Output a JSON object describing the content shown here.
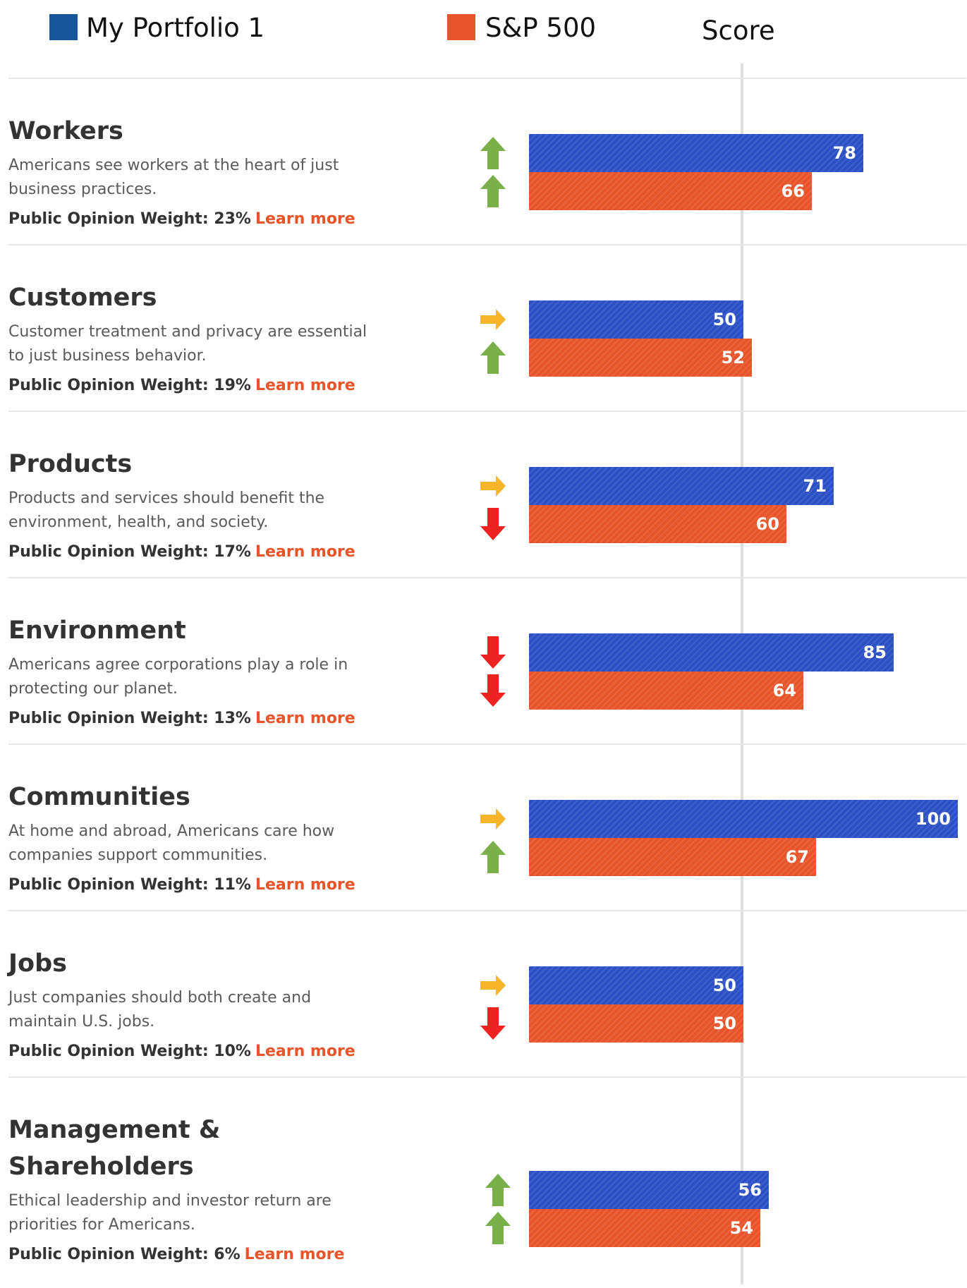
{
  "legend": {
    "portfolio_label": "My Portfolio 1",
    "benchmark_label": "S&P 500",
    "score_label": "Score"
  },
  "colors": {
    "portfolio": "#2b4fc4",
    "benchmark": "#e8542a",
    "portfolio_swatch": "#15579a",
    "arrow_up": "#79b04a",
    "arrow_right": "#f7b52b",
    "arrow_down": "#ee2222",
    "learn_more": "#e8542a"
  },
  "learn_more_label": "Learn more",
  "chart_data": {
    "type": "bar",
    "orientation": "horizontal",
    "title": "",
    "xlabel": "Score",
    "categories": [
      "Workers",
      "Customers",
      "Products",
      "Environment",
      "Communities",
      "Jobs",
      "Management & Shareholders"
    ],
    "series": [
      {
        "name": "My Portfolio 1",
        "values": [
          78,
          50,
          71,
          85,
          100,
          50,
          56
        ]
      },
      {
        "name": "S&P 500",
        "values": [
          66,
          52,
          60,
          64,
          67,
          50,
          54
        ]
      }
    ],
    "xlim": [
      0,
      100
    ],
    "reference_line": 50,
    "rows": [
      {
        "title_lines": [
          "Workers"
        ],
        "description": "Americans see workers at the heart of just business practices.",
        "weight_label": "Public Opinion Weight: 23%",
        "portfolio": {
          "value": 78,
          "trend": "up"
        },
        "benchmark": {
          "value": 66,
          "trend": "up"
        }
      },
      {
        "title_lines": [
          "Customers"
        ],
        "description": "Customer treatment and privacy are essential to just business behavior.",
        "weight_label": "Public Opinion Weight: 19%",
        "portfolio": {
          "value": 50,
          "trend": "right"
        },
        "benchmark": {
          "value": 52,
          "trend": "up"
        }
      },
      {
        "title_lines": [
          "Products"
        ],
        "description": "Products and services should benefit the environment, health, and society.",
        "weight_label": "Public Opinion Weight: 17%",
        "portfolio": {
          "value": 71,
          "trend": "right"
        },
        "benchmark": {
          "value": 60,
          "trend": "down"
        }
      },
      {
        "title_lines": [
          "Environment"
        ],
        "description": "Americans agree corporations play a role in protecting our planet.",
        "weight_label": "Public Opinion Weight: 13%",
        "portfolio": {
          "value": 85,
          "trend": "down"
        },
        "benchmark": {
          "value": 64,
          "trend": "down"
        }
      },
      {
        "title_lines": [
          "Communities"
        ],
        "description": "At home and abroad, Americans care how companies support communities.",
        "weight_label": "Public Opinion Weight: 11%",
        "portfolio": {
          "value": 100,
          "trend": "right"
        },
        "benchmark": {
          "value": 67,
          "trend": "up"
        }
      },
      {
        "title_lines": [
          "Jobs"
        ],
        "description": "Just companies should both create and maintain U.S. jobs.",
        "weight_label": "Public Opinion Weight: 10%",
        "portfolio": {
          "value": 50,
          "trend": "right"
        },
        "benchmark": {
          "value": 50,
          "trend": "down"
        }
      },
      {
        "title_lines": [
          "Management &",
          "Shareholders"
        ],
        "description": "Ethical leadership and investor return are priorities for Americans.",
        "weight_label": "Public Opinion Weight: 6%",
        "portfolio": {
          "value": 56,
          "trend": "up"
        },
        "benchmark": {
          "value": 54,
          "trend": "up"
        }
      }
    ]
  }
}
